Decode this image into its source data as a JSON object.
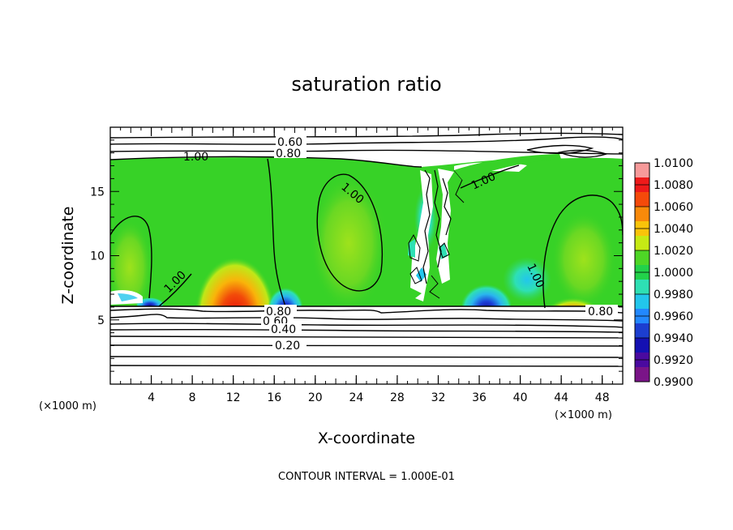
{
  "chart_data": {
    "type": "heatmap",
    "title": "saturation ratio",
    "xlabel": "X-coordinate",
    "ylabel": "Z-coordinate",
    "x_unit": "(×1000 m)",
    "xlim": [
      0,
      50
    ],
    "ylim": [
      0,
      20
    ],
    "x_ticks": [
      "4",
      "8",
      "12",
      "16",
      "20",
      "24",
      "28",
      "32",
      "36",
      "40",
      "44",
      "48"
    ],
    "y_ticks": [
      "5",
      "10",
      "15"
    ],
    "colorbar": {
      "labels": [
        "1.0100",
        "1.0080",
        "1.0060",
        "1.0040",
        "1.0020",
        "1.0000",
        "0.9980",
        "0.9960",
        "0.9940",
        "0.9920",
        "0.9900"
      ],
      "colors": [
        "#f79a9a",
        "#ee1a1a",
        "#f54a0a",
        "#f98a0a",
        "#f9c40a",
        "#c6ea14",
        "#4ed626",
        "#22d24a",
        "#2ee0b4",
        "#22c6ec",
        "#2288ff",
        "#1c3ed0",
        "#1410b2",
        "#4a0aa0",
        "#7a1488"
      ]
    },
    "contour_labels": [
      "0.60",
      "0.80",
      "1.00",
      "1.00",
      "1.00",
      "1.00",
      "1.00",
      "0.80",
      "0.60",
      "0.40",
      "0.20",
      "0.80"
    ],
    "footer": "CONTOUR INTERVAL = 1.000E-01"
  }
}
